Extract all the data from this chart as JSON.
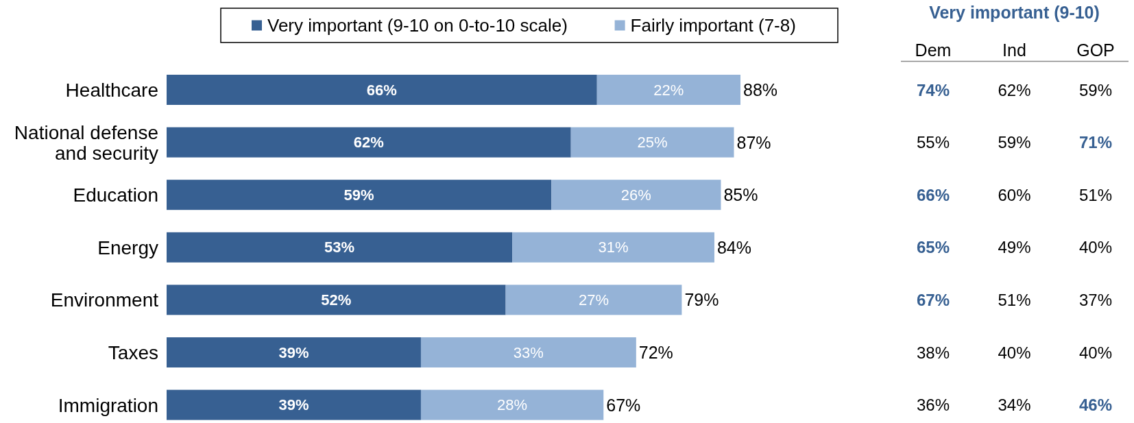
{
  "chart_data": [
    {
      "type": "bar",
      "orientation": "horizontal",
      "stacked": true,
      "legend": "top",
      "categories": [
        "Healthcare",
        "National defense and security",
        "Education",
        "Energy",
        "Environment",
        "Taxes",
        "Immigration"
      ],
      "series": [
        {
          "name": "Very important (9-10 on 0-to-10 scale)",
          "color": "#376092",
          "values": [
            66,
            62,
            59,
            53,
            52,
            39,
            39
          ],
          "value_labels": [
            "66%",
            "62%",
            "59%",
            "53%",
            "52%",
            "39%",
            "39%"
          ]
        },
        {
          "name": "Fairly important (7-8)",
          "color": "#95b3d7",
          "values": [
            22,
            25,
            26,
            31,
            27,
            33,
            28
          ],
          "value_labels": [
            "22%",
            "25%",
            "26%",
            "31%",
            "27%",
            "33%",
            "28%"
          ]
        }
      ],
      "totals": [
        "88%",
        "87%",
        "85%",
        "84%",
        "79%",
        "72%",
        "67%"
      ]
    },
    {
      "type": "heatmap",
      "title": "Very important (9-10)",
      "categories": [
        "Dem",
        "Ind",
        "GOP"
      ],
      "y_categories": [
        null,
        null,
        null,
        null,
        null,
        null,
        null
      ],
      "cells": [
        [
          74,
          62,
          59
        ],
        [
          55,
          59,
          71
        ],
        [
          66,
          60,
          51
        ],
        [
          65,
          49,
          40
        ],
        [
          67,
          51,
          37
        ],
        [
          38,
          40,
          40
        ],
        [
          36,
          34,
          46
        ]
      ],
      "cell_labels": [
        [
          "74%",
          "62%",
          "59%"
        ],
        [
          "55%",
          "59%",
          "71%"
        ],
        [
          "66%",
          "60%",
          "51%"
        ],
        [
          "65%",
          "49%",
          "40%"
        ],
        [
          "67%",
          "51%",
          "37%"
        ],
        [
          "38%",
          "40%",
          "40%"
        ],
        [
          "36%",
          "34%",
          "46%"
        ]
      ],
      "colors": [
        [
          "#376092",
          "#000000",
          "#000000"
        ],
        [
          "#000000",
          "#000000",
          "#376092"
        ],
        [
          "#376092",
          "#000000",
          "#000000"
        ],
        [
          "#376092",
          "#000000",
          "#000000"
        ],
        [
          "#376092",
          "#000000",
          "#000000"
        ],
        [
          "#000000",
          "#000000",
          "#000000"
        ],
        [
          "#000000",
          "#000000",
          "#376092"
        ]
      ]
    }
  ]
}
